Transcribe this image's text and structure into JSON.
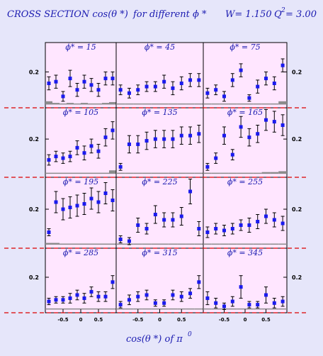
{
  "chart_data": {
    "type": "scatter",
    "title": {
      "main": "CROSS SECTION  cos(θ *)",
      "phi_part": "for different  ϕ *",
      "W_part": "W= 1.150",
      "Q_base": "Q",
      "Q_sup": "2",
      "Q_val": "= 3.00"
    },
    "xlabel": {
      "main": "cos(θ *)  of  π",
      "sup": "0"
    },
    "ytick": "0.2",
    "xticks": [
      "-0.5",
      "0",
      "0.5"
    ],
    "ylim": [
      -0.02,
      0.38
    ],
    "xlim": [
      -1,
      1
    ],
    "x": [
      -0.9,
      -0.7,
      -0.5,
      -0.3,
      -0.1,
      0.1,
      0.3,
      0.5,
      0.7,
      0.9
    ],
    "panels": [
      {
        "label": "ϕ* = 15",
        "y": [
          0.13,
          0.14,
          0.05,
          0.16,
          0.09,
          0.14,
          0.12,
          0.09,
          0.16,
          0.16
        ],
        "err": [
          0.04,
          0.04,
          0.03,
          0.05,
          0.04,
          0.04,
          0.04,
          0.04,
          0.04,
          0.04
        ],
        "sys": [
          0.02,
          0.01,
          0.005,
          0.01,
          0.005,
          0.01,
          0.005,
          0.005,
          0.01,
          0.015
        ]
      },
      {
        "label": "ϕ* = 45",
        "y": [
          0.09,
          0.07,
          0.09,
          0.11,
          0.11,
          0.14,
          0.1,
          0.13,
          0.15,
          0.15
        ],
        "err": [
          0.03,
          0.03,
          0.03,
          0.03,
          0.03,
          0.04,
          0.04,
          0.04,
          0.04,
          0.04
        ],
        "sys": [
          0.005,
          0.005,
          0.005,
          0.005,
          0.005,
          0.005,
          0.005,
          0.005,
          0.005,
          0.005
        ]
      },
      {
        "label": "ϕ* = 75",
        "y": [
          0.07,
          0.09,
          0.05,
          0.15,
          0.21,
          0.04,
          0.11,
          0.16,
          0.13,
          0.24
        ],
        "err": [
          0.03,
          0.03,
          0.03,
          0.04,
          0.04,
          0.02,
          0.04,
          0.04,
          0.04,
          0.04
        ],
        "sys": [
          0.005,
          0.005,
          0.005,
          0.005,
          0.005,
          0.005,
          0.005,
          0.005,
          0.005,
          0.02
        ]
      },
      {
        "label": "ϕ* = 105",
        "y": [
          0.08,
          0.1,
          0.09,
          0.1,
          0.15,
          0.12,
          0.16,
          0.13,
          0.21,
          0.25
        ],
        "err": [
          0.03,
          0.03,
          0.03,
          0.03,
          0.04,
          0.04,
          0.04,
          0.04,
          0.05,
          0.05
        ],
        "sys": [
          0.005,
          0.005,
          0.005,
          0.005,
          0.005,
          0.005,
          0.005,
          0.005,
          0.005,
          0.02
        ]
      },
      {
        "label": "ϕ* = 135",
        "y": [
          0.04,
          0.17,
          0.17,
          0.19,
          0.2,
          0.2,
          0.2,
          0.22,
          0.22,
          0.23
        ],
        "err": [
          0.02,
          0.05,
          0.05,
          0.05,
          0.05,
          0.05,
          0.05,
          0.05,
          0.05,
          0.05
        ],
        "sys": [
          0.005,
          0.005,
          0.005,
          0.005,
          0.005,
          0.005,
          0.005,
          0.005,
          0.005,
          0.005
        ]
      },
      {
        "label": "ϕ* = 165",
        "y": [
          0.04,
          0.09,
          0.22,
          0.11,
          0.27,
          0.21,
          0.23,
          0.31,
          0.3,
          0.28
        ],
        "err": [
          0.02,
          0.03,
          0.05,
          0.03,
          0.06,
          0.05,
          0.05,
          0.06,
          0.06,
          0.06
        ],
        "sys": [
          0.005,
          0.005,
          0.005,
          0.005,
          0.005,
          0.005,
          0.005,
          0.01,
          0.01,
          0.015
        ]
      },
      {
        "label": "ϕ* = 195",
        "y": [
          0.07,
          0.24,
          0.2,
          0.21,
          0.22,
          0.23,
          0.26,
          0.24,
          0.29,
          0.25
        ],
        "err": [
          0.02,
          0.06,
          0.06,
          0.06,
          0.06,
          0.06,
          0.06,
          0.06,
          0.06,
          0.06
        ],
        "sys": [
          0.01,
          0.01,
          0.005,
          0.005,
          0.005,
          0.005,
          0.005,
          0.005,
          0.005,
          0.005
        ]
      },
      {
        "label": "ϕ* = 225",
        "y": [
          0.03,
          0.02,
          0.11,
          0.09,
          0.17,
          0.14,
          0.14,
          0.16,
          0.3,
          0.09
        ],
        "err": [
          0.02,
          0.02,
          0.04,
          0.03,
          0.05,
          0.04,
          0.04,
          0.05,
          0.07,
          0.04
        ],
        "sys": [
          0.005,
          0.005,
          0.005,
          0.005,
          0.005,
          0.005,
          0.005,
          0.005,
          0.005,
          0.005
        ]
      },
      {
        "label": "ϕ* = 255",
        "y": [
          0.07,
          0.09,
          0.08,
          0.09,
          0.11,
          0.11,
          0.13,
          0.16,
          0.14,
          0.12
        ],
        "err": [
          0.03,
          0.03,
          0.03,
          0.03,
          0.03,
          0.04,
          0.04,
          0.04,
          0.04,
          0.04
        ],
        "sys": [
          0.005,
          0.005,
          0.005,
          0.005,
          0.005,
          0.005,
          0.005,
          0.005,
          0.005,
          0.005
        ]
      },
      {
        "label": "ϕ* = 285",
        "y": [
          0.05,
          0.06,
          0.06,
          0.07,
          0.09,
          0.07,
          0.11,
          0.08,
          0.08,
          0.17
        ],
        "err": [
          0.02,
          0.02,
          0.02,
          0.03,
          0.03,
          0.03,
          0.03,
          0.03,
          0.03,
          0.04
        ],
        "sys": [
          0.005,
          0.005,
          0.005,
          0.005,
          0.005,
          0.005,
          0.005,
          0.005,
          0.005,
          0.005
        ]
      },
      {
        "label": "ϕ* = 315",
        "y": [
          0.03,
          0.06,
          0.08,
          0.09,
          0.04,
          0.04,
          0.09,
          0.08,
          0.1,
          0.17
        ],
        "err": [
          0.02,
          0.03,
          0.03,
          0.03,
          0.02,
          0.02,
          0.03,
          0.03,
          0.03,
          0.04
        ],
        "sys": [
          0.005,
          0.005,
          0.005,
          0.005,
          0.005,
          0.005,
          0.005,
          0.005,
          0.005,
          0.005
        ]
      },
      {
        "label": "ϕ* = 345",
        "y": [
          0.07,
          0.04,
          0.02,
          0.05,
          0.14,
          0.03,
          0.03,
          0.09,
          0.04,
          0.05
        ],
        "err": [
          0.04,
          0.03,
          0.02,
          0.03,
          0.07,
          0.02,
          0.02,
          0.05,
          0.03,
          0.03
        ],
        "sys": [
          0.005,
          0.005,
          0.005,
          0.005,
          0.005,
          0.005,
          0.005,
          0.005,
          0.005,
          0.005
        ]
      }
    ],
    "colors": {
      "background": "#e6e6fa",
      "panel": "#ffe6ff",
      "marker": "#1a1aee",
      "text": "#1a1ab0",
      "dashed": "#dd0000",
      "sys_band": "#8c8c8c"
    },
    "grid": false,
    "legend": "none"
  }
}
